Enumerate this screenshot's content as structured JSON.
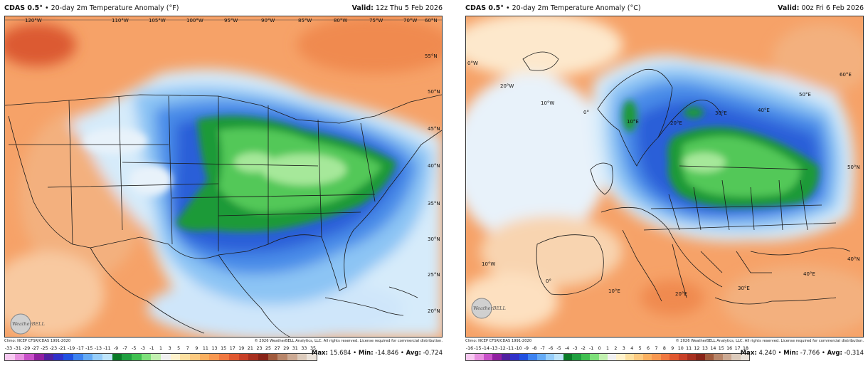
{
  "us": {
    "title_bold": "CDAS 0.5°",
    "title_rest": " • 20-day 2m Temperature Anomaly (°F)",
    "valid_label": "Valid:",
    "valid_value": " 12z Thu 5 Feb 2026",
    "lon_labels": [
      "120°W",
      "110°W",
      "105°W",
      "100°W",
      "95°W",
      "90°W",
      "85°W",
      "80°W",
      "75°W",
      "70°W",
      "60°N"
    ],
    "lat_labels": [
      "55°N",
      "50°N",
      "45°N",
      "40°N",
      "35°N",
      "30°N",
      "25°N",
      "20°N"
    ],
    "climo": "Climo: NCEP CFSR/CDAS 1991-2020",
    "copyright": "© 2026 WeatherBELL Analytics, LLC. All rights reserved. License required for commercial distribution.",
    "logo_text": "WeatherBELL",
    "scale_ticks": [
      "-33",
      "-31",
      "-29",
      "-27",
      "-25",
      "-23",
      "-21",
      "-19",
      "-17",
      "-15",
      "-13",
      "-11",
      "-9",
      "-7",
      "-5",
      "-3",
      "-1",
      "1",
      "3",
      "5",
      "7",
      "9",
      "11",
      "13",
      "15",
      "17",
      "19",
      "21",
      "23",
      "25",
      "27",
      "29",
      "31",
      "33",
      "35"
    ],
    "stats": {
      "max_label": "Max:",
      "max": "15.684",
      "min_label": "Min:",
      "min": "-14.846",
      "avg_label": "Avg:",
      "avg": "-0.724"
    }
  },
  "eu": {
    "title_bold": "CDAS 0.5°",
    "title_rest": " • 20-day 2m Temperature Anomaly (°C)",
    "valid_label": "Valid:",
    "valid_value": " 00z Fri 6 Feb 2026",
    "map_labels": [
      "0°W",
      "20°W",
      "10°W",
      "0°",
      "10°E",
      "20°E",
      "30°E",
      "40°E",
      "50°E",
      "60°E",
      "50°N",
      "40°N",
      "10°W",
      "0°",
      "10°E",
      "20°E",
      "30°E",
      "40°E"
    ],
    "climo": "Climo: NCEP CFSR/CDAS 1991-2020",
    "copyright": "© 2026 WeatherBELL Analytics, LLC. All rights reserved. License required for commercial distribution.",
    "logo_text": "WeatherBELL",
    "scale_ticks": [
      "-16",
      "-15",
      "-14",
      "-13",
      "-12",
      "-11",
      "-10",
      "-9",
      "-8",
      "-7",
      "-6",
      "-5",
      "-4",
      "-3",
      "-2",
      "-1",
      "0",
      "1",
      "2",
      "3",
      "4",
      "5",
      "6",
      "7",
      "8",
      "9",
      "10",
      "11",
      "12",
      "13",
      "14",
      "15",
      "16",
      "17",
      "18"
    ],
    "stats": {
      "max_label": "Max:",
      "max": "4.240",
      "min_label": "Min:",
      "min": "-7.766",
      "avg_label": "Avg:",
      "avg": "-0.314"
    }
  },
  "palette": [
    "#f7c8f0",
    "#e890e0",
    "#c850c8",
    "#9020a0",
    "#5020a0",
    "#3030c8",
    "#2050e0",
    "#3c82f0",
    "#64aaf5",
    "#96cdfa",
    "#bee4fa",
    "#0a7a28",
    "#20a040",
    "#40c050",
    "#7ee07a",
    "#c2f0b0",
    "#f0f0f0",
    "#fff2cc",
    "#fde0a0",
    "#fdca80",
    "#fbb060",
    "#f89850",
    "#f07840",
    "#e05830",
    "#c84028",
    "#a83020",
    "#882418",
    "#a05a3c",
    "#b8866a",
    "#ccaa94",
    "#dccbbc",
    "#ebe3db"
  ],
  "colors": {
    "warm": "#f6a268",
    "warm2": "#f08a50",
    "warmdeep": "#dc5a32",
    "pale": "#fde8cc",
    "cold_pale": "#d6ebfa",
    "cold": "#8cc4f4",
    "cold2": "#4a8ce8",
    "cold3": "#2a5ed8",
    "green1": "#1a9a38",
    "green2": "#52c858",
    "green3": "#a6e89a"
  }
}
